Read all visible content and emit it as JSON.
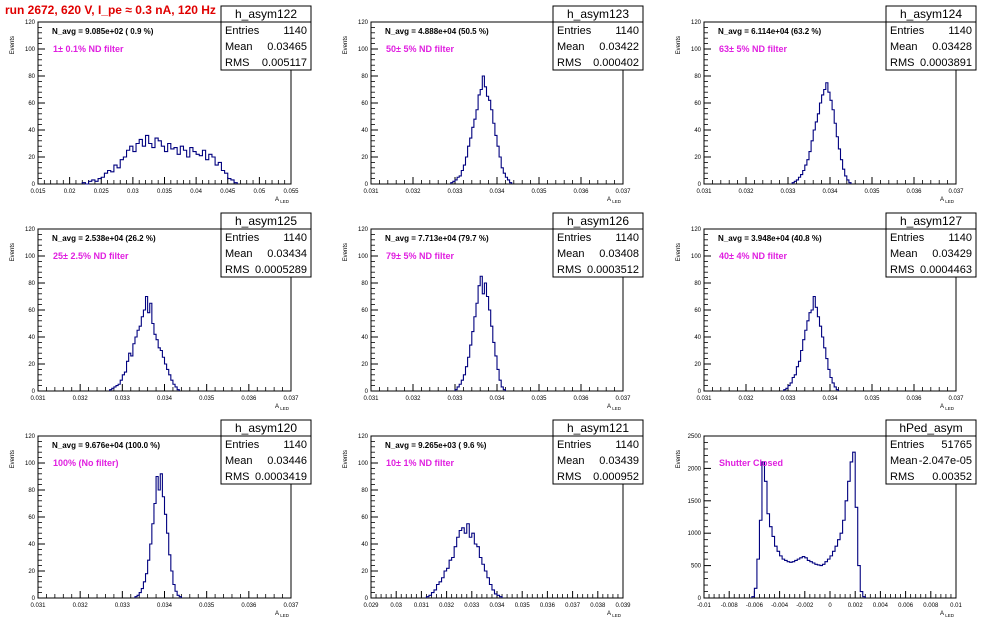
{
  "title": "run 2672,   620 V, I_pe ≈ 0.3 nA, 120 Hz",
  "colors": {
    "hist": "#00007f",
    "title": "#e00000",
    "filter": "#e020e0"
  },
  "chart_data": [
    {
      "type": "histogram",
      "name": "h_asym122",
      "stats": {
        "entries_label": "Entries",
        "entries": "1140",
        "mean_label": "Mean",
        "mean": "0.03465",
        "rms_label": "RMS",
        "rms": "0.005117"
      },
      "navg": "N_avg = 9.085e+02 ( 0.9 %)",
      "filter": "1± 0.1% ND filter",
      "ylabel": "Events",
      "xlabel": "A_LED",
      "xlim": [
        0.015,
        0.055
      ],
      "ylim": [
        0,
        120
      ],
      "xticks": [
        "0.015",
        "0.02",
        "0.025",
        "0.03",
        "0.035",
        "0.04",
        "0.045",
        "0.05",
        "0.055"
      ],
      "xtick_values": [
        0.015,
        0.02,
        0.025,
        0.03,
        0.035,
        0.04,
        0.045,
        0.05,
        0.055
      ],
      "yticks": [
        0,
        20,
        40,
        60,
        80,
        100,
        120
      ],
      "bin_start": 0.022,
      "bin_width": 0.0005,
      "counts": [
        1,
        0,
        2,
        3,
        2,
        4,
        5,
        8,
        10,
        9,
        14,
        12,
        18,
        20,
        25,
        28,
        24,
        30,
        33,
        28,
        36,
        30,
        27,
        34,
        32,
        28,
        24,
        30,
        26,
        27,
        22,
        28,
        25,
        20,
        27,
        24,
        22,
        21,
        25,
        18,
        22,
        20,
        14,
        16,
        10,
        8,
        4,
        3,
        1
      ]
    },
    {
      "type": "histogram",
      "name": "h_asym123",
      "stats": {
        "entries_label": "Entries",
        "entries": "1140",
        "mean_label": "Mean",
        "mean": "0.03422",
        "rms_label": "RMS",
        "rms": "0.000402"
      },
      "navg": "N_avg = 4.888e+04 (50.5 %)",
      "filter": "50± 5% ND filter",
      "ylabel": "Events",
      "xlabel": "A_LED",
      "xlim": [
        0.031,
        0.037
      ],
      "ylim": [
        0,
        120
      ],
      "xticks": [
        "0.031",
        "0.032",
        "0.033",
        "0.034",
        "0.035",
        "0.036",
        "0.037"
      ],
      "xtick_values": [
        0.031,
        0.032,
        0.033,
        0.034,
        0.035,
        0.036,
        0.037
      ],
      "yticks": [
        0,
        20,
        40,
        60,
        80,
        100,
        120
      ],
      "bin_start": 0.0329,
      "bin_width": 5e-05,
      "counts": [
        1,
        2,
        3,
        5,
        6,
        10,
        14,
        20,
        28,
        34,
        42,
        48,
        55,
        66,
        70,
        80,
        72,
        65,
        62,
        55,
        45,
        36,
        28,
        20,
        12,
        8,
        5,
        3,
        1
      ]
    },
    {
      "type": "histogram",
      "name": "h_asym124",
      "stats": {
        "entries_label": "Entries",
        "entries": "1140",
        "mean_label": "Mean",
        "mean": "0.03428",
        "rms_label": "RMS",
        "rms": "0.0003891"
      },
      "navg": "N_avg = 6.114e+04 (63.2 %)",
      "filter": "63± 5% ND filter",
      "ylabel": "Events",
      "xlabel": "A_LED",
      "xlim": [
        0.031,
        0.037
      ],
      "ylim": [
        0,
        120
      ],
      "xticks": [
        "0.031",
        "0.032",
        "0.033",
        "0.034",
        "0.035",
        "0.036",
        "0.037"
      ],
      "xtick_values": [
        0.031,
        0.032,
        0.033,
        0.034,
        0.035,
        0.036,
        0.037
      ],
      "yticks": [
        0,
        20,
        40,
        60,
        80,
        100,
        120
      ],
      "bin_start": 0.0331,
      "bin_width": 5e-05,
      "counts": [
        1,
        2,
        3,
        5,
        7,
        10,
        14,
        18,
        24,
        32,
        40,
        46,
        52,
        60,
        66,
        70,
        75,
        68,
        62,
        55,
        45,
        35,
        26,
        18,
        11,
        6,
        3,
        1
      ]
    },
    {
      "type": "histogram",
      "name": "h_asym125",
      "stats": {
        "entries_label": "Entries",
        "entries": "1140",
        "mean_label": "Mean",
        "mean": "0.03434",
        "rms_label": "RMS",
        "rms": "0.0005289"
      },
      "navg": "N_avg = 2.538e+04 (26.2 %)",
      "filter": "25± 2.5% ND filter",
      "ylabel": "Events",
      "xlabel": "A_LED",
      "xlim": [
        0.031,
        0.037
      ],
      "ylim": [
        0,
        120
      ],
      "xticks": [
        "0.031",
        "0.032",
        "0.033",
        "0.034",
        "0.035",
        "0.036",
        "0.037"
      ],
      "xtick_values": [
        0.031,
        0.032,
        0.033,
        0.034,
        0.035,
        0.036,
        0.037
      ],
      "yticks": [
        0,
        20,
        40,
        60,
        80,
        100,
        120
      ],
      "bin_start": 0.0327,
      "bin_width": 5e-05,
      "counts": [
        1,
        2,
        3,
        4,
        5,
        8,
        12,
        14,
        22,
        28,
        26,
        35,
        40,
        45,
        48,
        55,
        60,
        70,
        58,
        65,
        50,
        42,
        38,
        32,
        30,
        25,
        20,
        16,
        12,
        8,
        5,
        3,
        1
      ]
    },
    {
      "type": "histogram",
      "name": "h_asym126",
      "stats": {
        "entries_label": "Entries",
        "entries": "1140",
        "mean_label": "Mean",
        "mean": "0.03408",
        "rms_label": "RMS",
        "rms": "0.0003512"
      },
      "navg": "N_avg = 7.713e+04 (79.7 %)",
      "filter": "79± 5% ND filter",
      "ylabel": "Events",
      "xlabel": "A_LED",
      "xlim": [
        0.031,
        0.037
      ],
      "ylim": [
        0,
        120
      ],
      "xticks": [
        "0.031",
        "0.032",
        "0.033",
        "0.034",
        "0.035",
        "0.036",
        "0.037"
      ],
      "xtick_values": [
        0.031,
        0.032,
        0.033,
        0.034,
        0.035,
        0.036,
        0.037
      ],
      "yticks": [
        0,
        20,
        40,
        60,
        80,
        100,
        120
      ],
      "bin_start": 0.033,
      "bin_width": 5e-05,
      "counts": [
        1,
        3,
        5,
        8,
        12,
        18,
        25,
        34,
        44,
        55,
        65,
        78,
        85,
        72,
        80,
        70,
        60,
        48,
        36,
        26,
        16,
        8,
        3,
        1
      ]
    },
    {
      "type": "histogram",
      "name": "h_asym127",
      "stats": {
        "entries_label": "Entries",
        "entries": "1140",
        "mean_label": "Mean",
        "mean": "0.03429",
        "rms_label": "RMS",
        "rms": "0.0004463"
      },
      "navg": "N_avg = 3.948e+04 (40.8 %)",
      "filter": "40± 4% ND filter",
      "ylabel": "Events",
      "xlabel": "A_LED",
      "xlim": [
        0.031,
        0.037
      ],
      "ylim": [
        0,
        120
      ],
      "xticks": [
        "0.031",
        "0.032",
        "0.033",
        "0.034",
        "0.035",
        "0.036",
        "0.037"
      ],
      "xtick_values": [
        0.031,
        0.032,
        0.033,
        0.034,
        0.035,
        0.036,
        0.037
      ],
      "yticks": [
        0,
        20,
        40,
        60,
        80,
        100,
        120
      ],
      "bin_start": 0.0329,
      "bin_width": 5e-05,
      "counts": [
        1,
        2,
        4,
        6,
        10,
        12,
        18,
        22,
        30,
        38,
        45,
        52,
        58,
        60,
        70,
        62,
        55,
        48,
        40,
        32,
        24,
        16,
        10,
        6,
        3,
        1
      ]
    },
    {
      "type": "histogram",
      "name": "h_asym120",
      "stats": {
        "entries_label": "Entries",
        "entries": "1140",
        "mean_label": "Mean",
        "mean": "0.03446",
        "rms_label": "RMS",
        "rms": "0.0003419"
      },
      "navg": "N_avg = 9.676e+04 (100.0 %)",
      "filter": "100% (No filter)",
      "ylabel": "Events",
      "xlabel": "A_LED",
      "xlim": [
        0.031,
        0.037
      ],
      "ylim": [
        0,
        120
      ],
      "xticks": [
        "0.031",
        "0.032",
        "0.033",
        "0.034",
        "0.035",
        "0.036",
        "0.037"
      ],
      "xtick_values": [
        0.031,
        0.032,
        0.033,
        0.034,
        0.035,
        0.036,
        0.037
      ],
      "yticks": [
        0,
        20,
        40,
        60,
        80,
        100,
        120
      ],
      "bin_start": 0.0333,
      "bin_width": 5e-05,
      "counts": [
        1,
        2,
        4,
        7,
        12,
        18,
        28,
        40,
        55,
        70,
        90,
        80,
        92,
        75,
        62,
        48,
        32,
        20,
        10,
        5,
        2,
        1
      ]
    },
    {
      "type": "histogram",
      "name": "h_asym121",
      "stats": {
        "entries_label": "Entries",
        "entries": "1140",
        "mean_label": "Mean",
        "mean": "0.03439",
        "rms_label": "RMS",
        "rms": "0.000952"
      },
      "navg": "N_avg = 9.265e+03 ( 9.6 %)",
      "filter": "10± 1% ND filter",
      "ylabel": "Events",
      "xlabel": "A_LED",
      "xlim": [
        0.029,
        0.039
      ],
      "ylim": [
        0,
        120
      ],
      "xticks": [
        "0.029",
        "0.03",
        "0.031",
        "0.032",
        "0.033",
        "0.034",
        "0.035",
        "0.036",
        "0.037",
        "0.038",
        "0.039"
      ],
      "xtick_values": [
        0.029,
        0.03,
        0.031,
        0.032,
        0.033,
        0.034,
        0.035,
        0.036,
        0.037,
        0.038,
        0.039
      ],
      "yticks": [
        0,
        20,
        40,
        60,
        80,
        100,
        120
      ],
      "bin_start": 0.0312,
      "bin_width": 0.0001,
      "counts": [
        1,
        2,
        4,
        6,
        10,
        12,
        15,
        20,
        22,
        28,
        30,
        38,
        45,
        50,
        52,
        48,
        55,
        45,
        48,
        40,
        38,
        30,
        25,
        20,
        15,
        10,
        6,
        3,
        2,
        1
      ]
    },
    {
      "type": "histogram",
      "name": "hPed_asym",
      "stats": {
        "entries_label": "Entries",
        "entries": "51765",
        "mean_label": "Mean",
        "mean": "-2.047e-05",
        "rms_label": "RMS",
        "rms": "0.00352"
      },
      "navg": "",
      "filter": "Shutter Closed",
      "ylabel": "Events",
      "xlabel": "A_LED",
      "xlim": [
        -0.01,
        0.01
      ],
      "ylim": [
        0,
        2500
      ],
      "xticks": [
        "-0.01",
        "-0.008",
        "-0.006",
        "-0.004",
        "-0.002",
        "0",
        "0.002",
        "0.004",
        "0.006",
        "0.008",
        "0.01"
      ],
      "xtick_values": [
        -0.01,
        -0.008,
        -0.006,
        -0.004,
        -0.002,
        0,
        0.002,
        0.004,
        0.006,
        0.008,
        0.01
      ],
      "yticks": [
        0,
        500,
        1000,
        1500,
        2000,
        2500
      ],
      "bin_start": -0.0062,
      "bin_width": 0.0002,
      "counts": [
        20,
        150,
        600,
        1200,
        2100,
        1800,
        1300,
        1100,
        950,
        800,
        720,
        650,
        600,
        580,
        560,
        550,
        560,
        580,
        600,
        620,
        640,
        620,
        580,
        560,
        540,
        520,
        510,
        500,
        520,
        560,
        600,
        650,
        720,
        800,
        900,
        1000,
        1200,
        1500,
        1800,
        2100,
        2250,
        1400,
        500,
        100,
        20
      ]
    }
  ]
}
